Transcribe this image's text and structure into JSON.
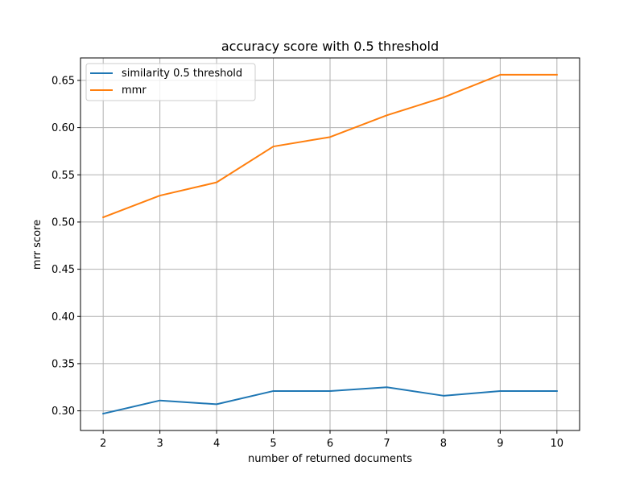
{
  "chart_data": {
    "type": "line",
    "title": "accuracy score with 0.5 threshold",
    "xlabel": "number of returned documents",
    "ylabel": "mrr score",
    "x": [
      2,
      3,
      4,
      5,
      6,
      7,
      8,
      9,
      10
    ],
    "x_ticks": [
      "2",
      "3",
      "4",
      "5",
      "6",
      "7",
      "8",
      "9",
      "10"
    ],
    "y_ticks": [
      "0.30",
      "0.35",
      "0.40",
      "0.45",
      "0.50",
      "0.55",
      "0.60",
      "0.65"
    ],
    "xlim": [
      1.6,
      10.4
    ],
    "ylim": [
      0.2792,
      0.6738
    ],
    "grid": true,
    "legend_position": "upper left",
    "series": [
      {
        "name": "similarity 0.5 threshold",
        "color": "#1f77b4",
        "values": [
          0.297,
          0.311,
          0.307,
          0.321,
          0.321,
          0.325,
          0.316,
          0.321,
          0.321
        ]
      },
      {
        "name": "mmr",
        "color": "#ff7f0e",
        "values": [
          0.505,
          0.528,
          0.542,
          0.58,
          0.59,
          0.613,
          0.632,
          0.656,
          0.656
        ]
      }
    ]
  }
}
